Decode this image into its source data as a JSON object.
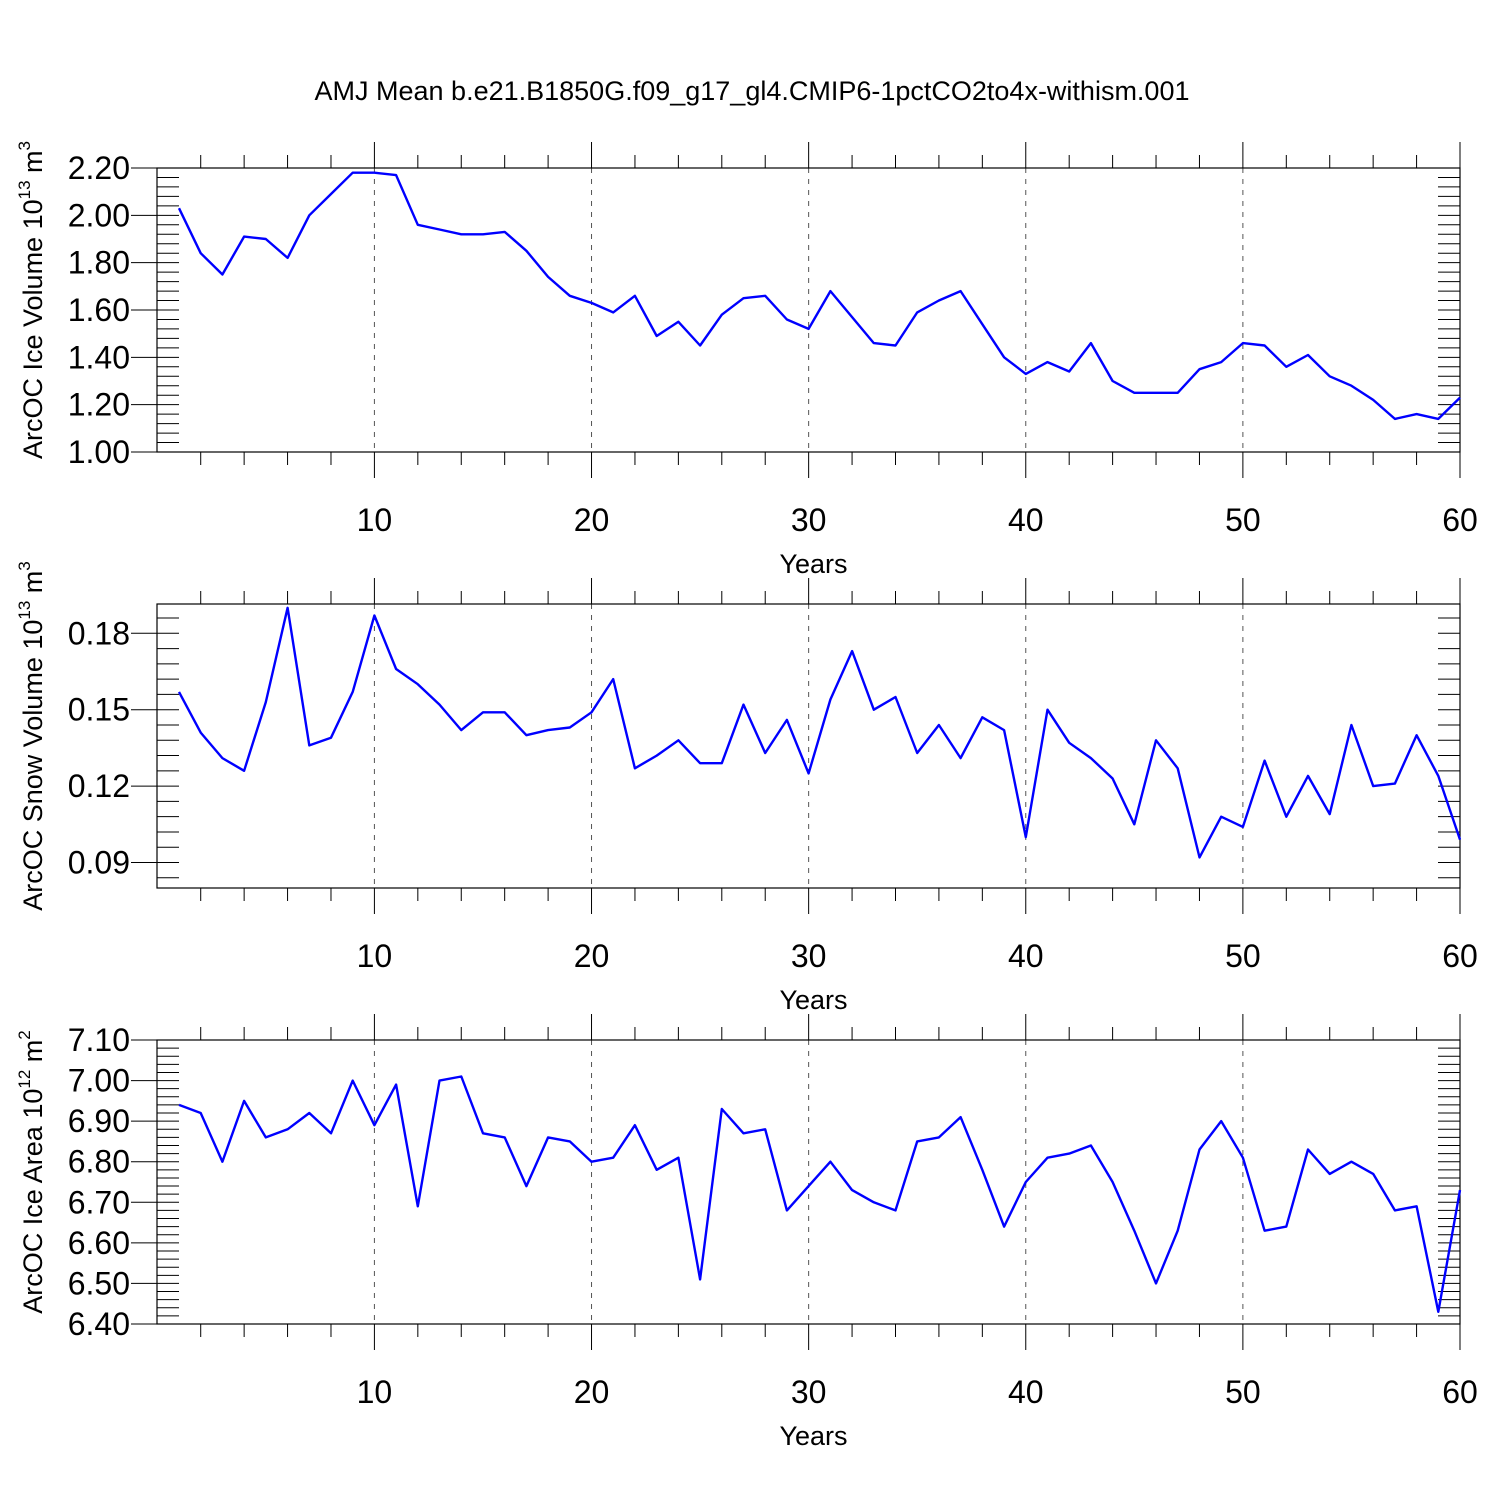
{
  "page_title": "AMJ Mean b.e21.B1850G.f09_g17_gl4.CMIP6-1pctCO2to4x-withism.001",
  "chart_data": [
    {
      "type": "line",
      "title": "AMJ Mean b.e21.B1850G.f09_g17_gl4.CMIP6-1pctCO2to4x-withism.001",
      "xlabel": "Years",
      "ylabel": "ArcOC Ice Volume 10",
      "ylabel_exp": "13",
      "ylabel_unit": "m",
      "ylabel_unit_exp": "3",
      "xlim": [
        1,
        60
      ],
      "ylim": [
        1.0,
        2.2
      ],
      "xticks": [
        10,
        20,
        30,
        40,
        50,
        60
      ],
      "xtick_labels": [
        "10",
        "20",
        "30",
        "40",
        "50",
        "60"
      ],
      "yticks": [
        1.0,
        1.2,
        1.4,
        1.6,
        1.8,
        2.0,
        2.2
      ],
      "ytick_labels": [
        "1.00",
        "1.20",
        "1.40",
        "1.60",
        "1.80",
        "2.00",
        "2.20"
      ],
      "grid": "vertical dashed",
      "series": [
        {
          "name": "Ice Volume",
          "color": "#0000ff",
          "x": [
            1,
            2,
            3,
            4,
            5,
            6,
            7,
            8,
            9,
            10,
            11,
            12,
            13,
            14,
            15,
            16,
            17,
            18,
            19,
            20,
            21,
            22,
            23,
            24,
            25,
            26,
            27,
            28,
            29,
            30,
            31,
            32,
            33,
            34,
            35,
            36,
            37,
            38,
            39,
            40,
            41,
            42,
            43,
            44,
            45,
            46,
            47,
            48,
            49,
            50,
            51,
            52,
            53,
            54,
            55,
            56,
            57,
            58,
            59,
            60
          ],
          "values": [
            2.03,
            1.84,
            1.75,
            1.91,
            1.9,
            1.82,
            2.0,
            2.09,
            2.18,
            2.18,
            2.17,
            1.96,
            1.94,
            1.92,
            1.92,
            1.93,
            1.85,
            1.74,
            1.66,
            1.63,
            1.59,
            1.66,
            1.49,
            1.55,
            1.45,
            1.58,
            1.65,
            1.66,
            1.56,
            1.52,
            1.68,
            1.57,
            1.46,
            1.45,
            1.59,
            1.64,
            1.68,
            1.54,
            1.4,
            1.33,
            1.38,
            1.34,
            1.46,
            1.3,
            1.25,
            1.25,
            1.25,
            1.35,
            1.38,
            1.46,
            1.45,
            1.36,
            1.41,
            1.32,
            1.28,
            1.22,
            1.14,
            1.16,
            1.14,
            1.23
          ]
        }
      ]
    },
    {
      "type": "line",
      "xlabel": "Years",
      "ylabel": "ArcOC Snow Volume 10",
      "ylabel_exp": "13",
      "ylabel_unit": "m",
      "ylabel_unit_exp": "3",
      "xlim": [
        1,
        60
      ],
      "ylim": [
        0.08,
        0.1915
      ],
      "xticks": [
        10,
        20,
        30,
        40,
        50,
        60
      ],
      "xtick_labels": [
        "10",
        "20",
        "30",
        "40",
        "50",
        "60"
      ],
      "yticks": [
        0.09,
        0.12,
        0.15,
        0.18
      ],
      "ytick_labels": [
        "0.09",
        "0.12",
        "0.15",
        "0.18"
      ],
      "grid": "vertical dashed",
      "series": [
        {
          "name": "Snow Volume",
          "color": "#0000ff",
          "x": [
            1,
            2,
            3,
            4,
            5,
            6,
            7,
            8,
            9,
            10,
            11,
            12,
            13,
            14,
            15,
            16,
            17,
            18,
            19,
            20,
            21,
            22,
            23,
            24,
            25,
            26,
            27,
            28,
            29,
            30,
            31,
            32,
            33,
            34,
            35,
            36,
            37,
            38,
            39,
            40,
            41,
            42,
            43,
            44,
            45,
            46,
            47,
            48,
            49,
            50,
            51,
            52,
            53,
            54,
            55,
            56,
            57,
            58,
            59,
            60
          ],
          "values": [
            0.157,
            0.141,
            0.131,
            0.126,
            0.153,
            0.19,
            0.136,
            0.139,
            0.157,
            0.187,
            0.166,
            0.16,
            0.152,
            0.142,
            0.149,
            0.149,
            0.14,
            0.142,
            0.143,
            0.149,
            0.162,
            0.127,
            0.132,
            0.138,
            0.129,
            0.129,
            0.152,
            0.133,
            0.146,
            0.125,
            0.154,
            0.173,
            0.15,
            0.155,
            0.133,
            0.144,
            0.131,
            0.147,
            0.142,
            0.1,
            0.15,
            0.137,
            0.131,
            0.123,
            0.105,
            0.138,
            0.127,
            0.092,
            0.108,
            0.104,
            0.13,
            0.108,
            0.124,
            0.109,
            0.144,
            0.12,
            0.121,
            0.14,
            0.124,
            0.099
          ]
        }
      ]
    },
    {
      "type": "line",
      "xlabel": "Years",
      "ylabel": "ArcOC Ice Area 10",
      "ylabel_exp": "12",
      "ylabel_unit": "m",
      "ylabel_unit_exp": "2",
      "xlim": [
        1,
        60
      ],
      "ylim": [
        6.4,
        7.1
      ],
      "xticks": [
        10,
        20,
        30,
        40,
        50,
        60
      ],
      "xtick_labels": [
        "10",
        "20",
        "30",
        "40",
        "50",
        "60"
      ],
      "yticks": [
        6.4,
        6.5,
        6.6,
        6.7,
        6.8,
        6.9,
        7.0,
        7.1
      ],
      "ytick_labels": [
        "6.40",
        "6.50",
        "6.60",
        "6.70",
        "6.80",
        "6.90",
        "7.00",
        "7.10"
      ],
      "grid": "vertical dashed",
      "series": [
        {
          "name": "Ice Area",
          "color": "#0000ff",
          "x": [
            1,
            2,
            3,
            4,
            5,
            6,
            7,
            8,
            9,
            10,
            11,
            12,
            13,
            14,
            15,
            16,
            17,
            18,
            19,
            20,
            21,
            22,
            23,
            24,
            25,
            26,
            27,
            28,
            29,
            30,
            31,
            32,
            33,
            34,
            35,
            36,
            37,
            38,
            39,
            40,
            41,
            42,
            43,
            44,
            45,
            46,
            47,
            48,
            49,
            50,
            51,
            52,
            53,
            54,
            55,
            56,
            57,
            58,
            59,
            60
          ],
          "values": [
            6.94,
            6.92,
            6.8,
            6.95,
            6.86,
            6.88,
            6.92,
            6.87,
            7.0,
            6.89,
            6.99,
            6.69,
            7.0,
            7.01,
            6.87,
            6.86,
            6.74,
            6.86,
            6.85,
            6.8,
            6.81,
            6.89,
            6.78,
            6.81,
            6.51,
            6.93,
            6.87,
            6.88,
            6.68,
            6.74,
            6.8,
            6.73,
            6.7,
            6.68,
            6.85,
            6.86,
            6.91,
            6.78,
            6.64,
            6.75,
            6.81,
            6.82,
            6.84,
            6.75,
            6.63,
            6.5,
            6.63,
            6.83,
            6.9,
            6.81,
            6.63,
            6.64,
            6.83,
            6.77,
            6.8,
            6.77,
            6.68,
            6.69,
            6.43,
            6.73
          ]
        }
      ]
    }
  ]
}
